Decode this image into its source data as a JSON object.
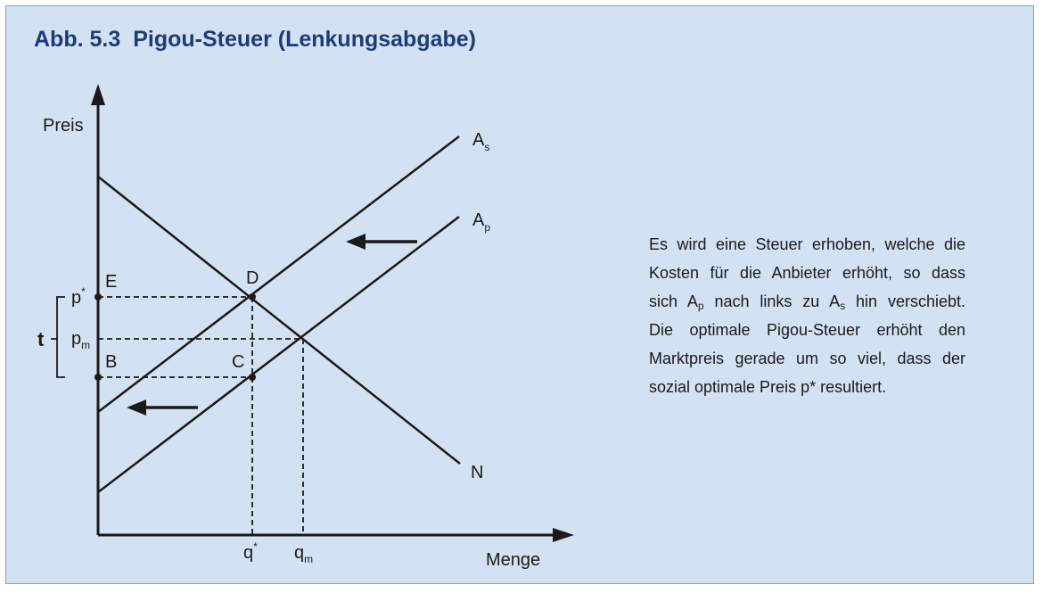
{
  "figure": {
    "number": "Abb. 5.3",
    "title": "Pigou-Steuer (Lenkungsabgabe)"
  },
  "diagram": {
    "y_axis_label": "Preis",
    "x_axis_label": "Menge",
    "curves": {
      "social_supply": {
        "label": "A",
        "sub": "s"
      },
      "private_supply": {
        "label": "A",
        "sub": "p"
      },
      "demand": {
        "label": "N"
      }
    },
    "points": {
      "D": "D",
      "C": "C",
      "E": "E",
      "B": "B"
    },
    "y_ticks": {
      "p_star": {
        "label": "p",
        "sup": "*"
      },
      "p_m": {
        "label": "p",
        "sub": "m"
      }
    },
    "x_ticks": {
      "q_star": {
        "label": "q",
        "sup": "*"
      },
      "q_m": {
        "label": "q",
        "sub": "m"
      }
    },
    "tax_label": "t"
  },
  "description": {
    "line1": "Es wird eine Steuer erhoben, welche die",
    "line2": "Kosten für die Anbieter erhöht, so dass",
    "line3a": "sich A",
    "line3a_sub": "p",
    "line3b": " nach links zu A",
    "line3b_sub": "s",
    "line3c": " hin verschiebt.",
    "line4": "Die optimale Pigou-Steuer erhöht den",
    "line5": "Marktpreis gerade um so viel, dass der",
    "line6": "sozial optimale Preis p* resultiert."
  }
}
